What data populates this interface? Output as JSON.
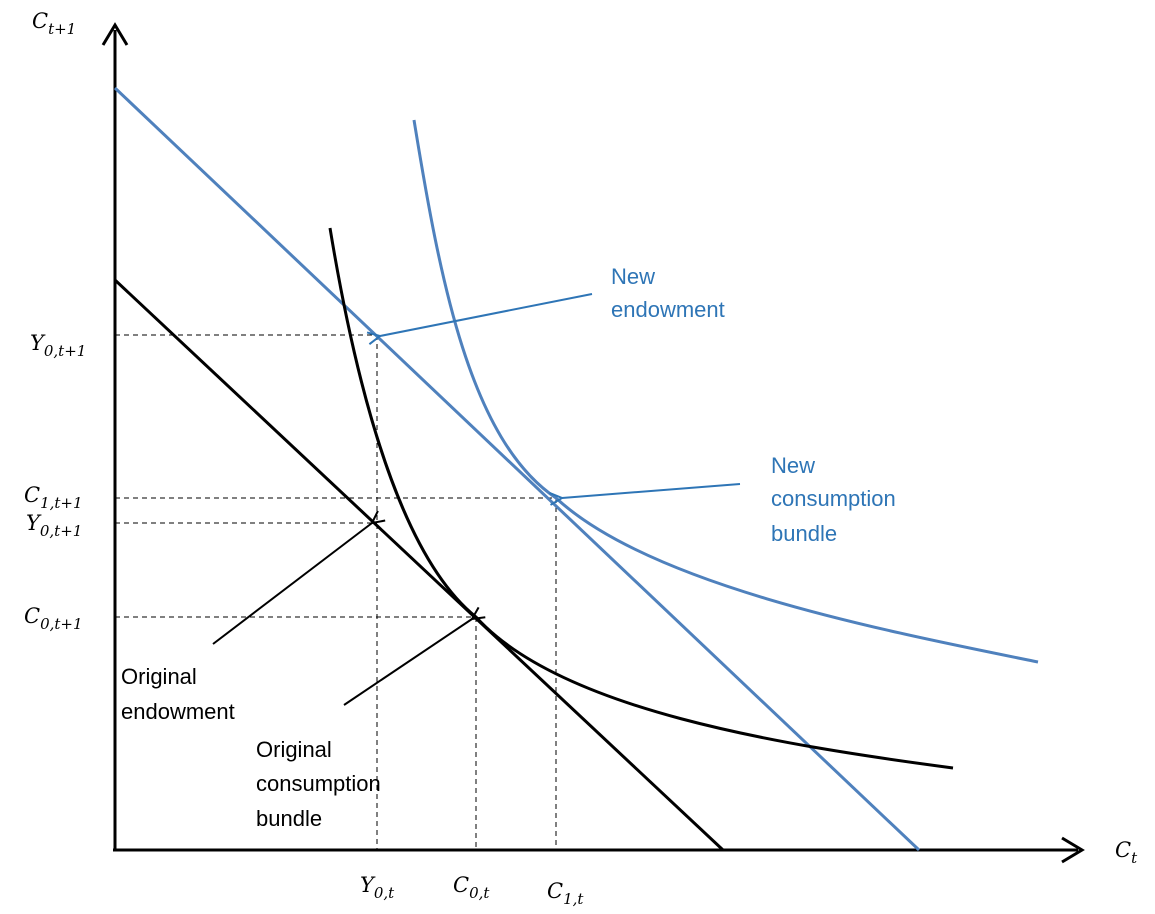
{
  "axes": {
    "y_label": {
      "base": "C",
      "sub": "t+1"
    },
    "x_label": {
      "base": "C",
      "sub": "t"
    }
  },
  "tick_labels": {
    "y0_new": {
      "base": "Y",
      "sub": "0,t+1"
    },
    "c1_next": {
      "base": "C",
      "sub": "1,t+1"
    },
    "y0_orig": {
      "base": "Y",
      "sub": "0,t+1"
    },
    "c0_next": {
      "base": "C",
      "sub": "0,t+1"
    },
    "y0_t": {
      "base": "Y",
      "sub": "0,t"
    },
    "c0_t": {
      "base": "C",
      "sub": "0,t"
    },
    "c1_t": {
      "base": "C",
      "sub": "1,t"
    }
  },
  "annotations": {
    "new_endowment": [
      "New",
      "endowment"
    ],
    "new_consumption": [
      "New",
      "consumption",
      "bundle"
    ],
    "original_endowment": [
      "Original",
      "endowment"
    ],
    "original_consumption": [
      "Original",
      "consumption",
      "bundle"
    ]
  },
  "colors": {
    "black_curves": "#000000",
    "blue_curves": "#4f81bd",
    "blue_text": "#2e75b6"
  }
}
